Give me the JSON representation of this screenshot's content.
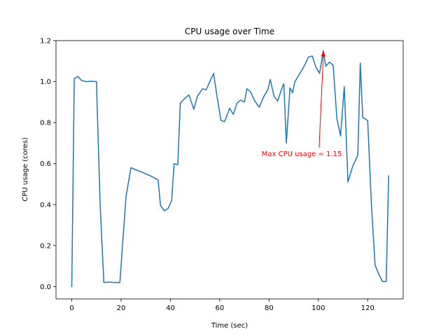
{
  "chart_data": {
    "type": "line",
    "title": "CPU usage over Time",
    "xlabel": "Time (sec)",
    "ylabel": "CPU usage (cores)",
    "xlim": [
      -6.4,
      134.4
    ],
    "ylim": [
      -0.06,
      1.2
    ],
    "xticks": [
      0,
      20,
      40,
      60,
      80,
      100,
      120
    ],
    "yticks": [
      0.0,
      0.2,
      0.4,
      0.6,
      0.8,
      1.0,
      1.2
    ],
    "xtick_labels": [
      "0",
      "20",
      "40",
      "60",
      "80",
      "100",
      "120"
    ],
    "ytick_labels": [
      "0.0",
      "0.2",
      "0.4",
      "0.6",
      "0.8",
      "1.0",
      "1.2"
    ],
    "grid": false,
    "line_color": "#1f77b4",
    "series": [
      {
        "x": [
          0,
          1,
          2.5,
          4,
          6,
          8,
          10,
          11.5,
          13,
          15,
          17.5,
          19.5,
          22,
          24,
          26,
          28,
          30,
          32,
          35,
          36,
          37.5,
          39,
          40.5,
          41.5,
          43,
          44,
          46,
          47.5,
          49.5,
          51,
          53,
          54.5,
          57.5,
          59,
          60.5,
          62,
          64,
          65.5,
          67,
          68.5,
          70,
          71,
          72.5,
          74,
          76,
          78,
          79.5,
          80.5,
          82,
          83.5,
          85,
          86,
          87,
          88.5,
          89.5,
          90.5,
          92,
          94,
          96,
          97.5,
          99,
          100.5,
          102,
          103,
          104.5,
          106,
          107.5,
          109,
          110.5,
          112,
          114,
          116,
          117,
          118,
          120,
          121.5,
          123,
          124.5,
          126,
          127.5,
          128.5
        ],
        "y": [
          0.0,
          1.015,
          1.025,
          1.005,
          1.0,
          1.002,
          1.0,
          0.4,
          0.02,
          0.022,
          0.02,
          0.02,
          0.44,
          0.58,
          0.57,
          0.56,
          0.55,
          0.54,
          0.52,
          0.395,
          0.37,
          0.38,
          0.42,
          0.6,
          0.595,
          0.895,
          0.92,
          0.935,
          0.865,
          0.93,
          0.965,
          0.96,
          1.04,
          0.92,
          0.81,
          0.805,
          0.87,
          0.84,
          0.895,
          0.91,
          0.9,
          0.965,
          0.95,
          0.91,
          0.875,
          0.93,
          0.96,
          1.01,
          0.93,
          0.905,
          0.96,
          0.99,
          0.7,
          0.97,
          0.945,
          1.0,
          1.03,
          1.07,
          1.12,
          1.125,
          1.07,
          1.04,
          1.15,
          1.075,
          1.095,
          1.08,
          0.82,
          0.735,
          0.975,
          0.51,
          0.59,
          0.64,
          1.09,
          0.825,
          0.81,
          0.4,
          0.105,
          0.06,
          0.025,
          0.025,
          0.54
        ]
      }
    ],
    "annotation": {
      "text": "Max CPU usage = 1.15",
      "color": "#ff0000",
      "point": [
        102,
        1.15
      ],
      "text_position": [
        77,
        0.63
      ]
    }
  }
}
